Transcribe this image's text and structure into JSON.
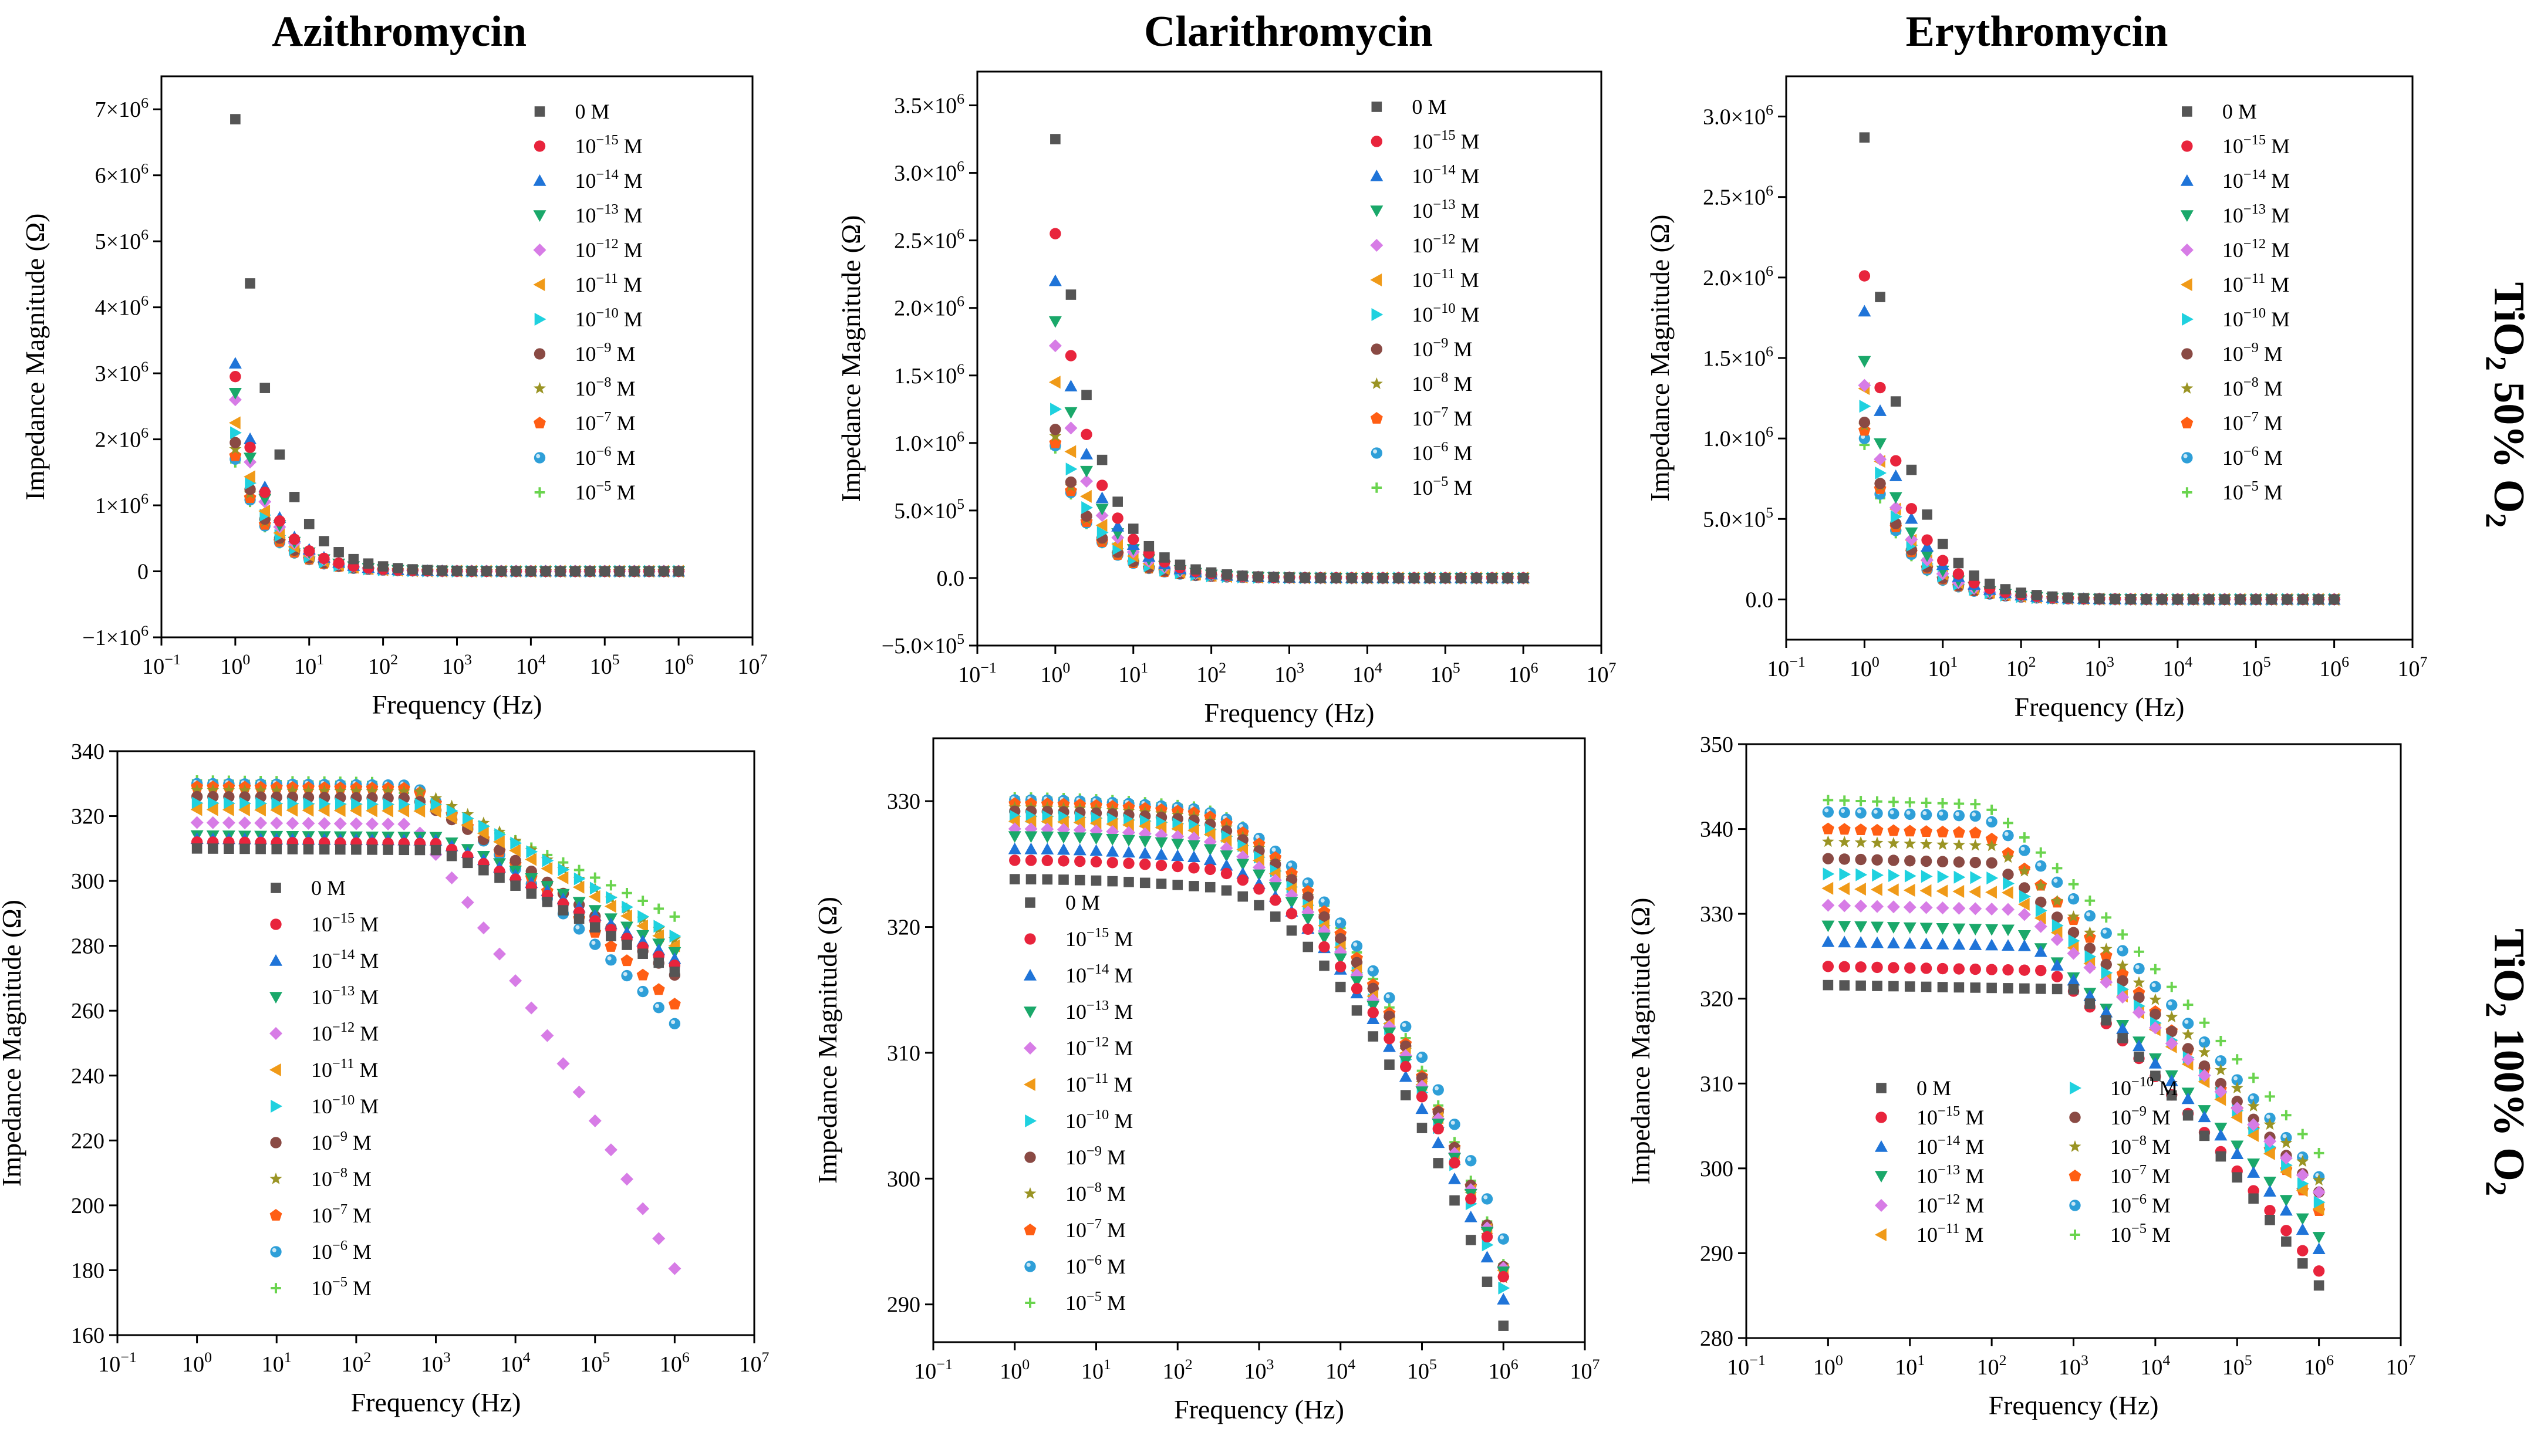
{
  "figure": {
    "column_titles": [
      "Azithromycin",
      "Clarithromycin",
      "Erythromycin"
    ],
    "row_labels": [
      {
        "main": "TiO",
        "sub": "2",
        "mid": " 50% O",
        "sub2": "2"
      },
      {
        "main": "TiO",
        "sub": "2",
        "mid": " 100% O",
        "sub2": "2"
      }
    ],
    "series_labels": [
      "0 M",
      "10^-15 M",
      "10^-14 M",
      "10^-13 M",
      "10^-12 M",
      "10^-11 M",
      "10^-10 M",
      "10^-9 M",
      "10^-8 M",
      "10^-7 M",
      "10^-6 M",
      "10^-5 M"
    ],
    "series_colors": [
      "#555555",
      "#e8243c",
      "#1f74d8",
      "#1aa86a",
      "#d77ce6",
      "#f09a18",
      "#1fd1df",
      "#8a4a44",
      "#9a9424",
      "#ff5e14",
      "#2e9fd8",
      "#6ad44e"
    ],
    "series_markers": [
      "square",
      "circle",
      "triangle-up",
      "triangle-down",
      "diamond",
      "triangle-left",
      "triangle-right",
      "circle",
      "star",
      "pentagon",
      "sphere",
      "plus"
    ],
    "x_tick_labels": [
      "10^-1",
      "10^0",
      "10^1",
      "10^2",
      "10^3",
      "10^4",
      "10^5",
      "10^6",
      "10^7"
    ]
  },
  "chart_data": [
    {
      "id": "azi50",
      "type": "scatter",
      "title": "Azithromycin",
      "xlabel": "Frequency (Hz)",
      "ylabel": "Impedance Magnitude (Ω)",
      "xscale": "log",
      "xlim": [
        0.1,
        10000000
      ],
      "ylim": [
        -1000000,
        7500000
      ],
      "y_ticks": [
        -1000000,
        0,
        1000000,
        2000000,
        3000000,
        4000000,
        5000000,
        6000000,
        7000000
      ],
      "y_tick_labels": [
        "-1×10^6",
        "0",
        "1×10^6",
        "2×10^6",
        "3×10^6",
        "4×10^6",
        "5×10^6",
        "6×10^6",
        "7×10^6"
      ],
      "legend": {
        "position": "top-right",
        "columns": 1
      },
      "model": {
        "kind": "decay",
        "base_y0": [
          6850000,
          2950000,
          3150000,
          2700000,
          2600000,
          2250000,
          2100000,
          1950000,
          1850000,
          1750000,
          1700000,
          1650000
        ],
        "decay_exponent": 0.98
      },
      "frequency_range_hz": [
        1,
        1000000
      ],
      "points_per_series": 31
    },
    {
      "id": "cla50",
      "type": "scatter",
      "title": "Clarithromycin",
      "xlabel": "Frequency (Hz)",
      "ylabel": "Impedance Magnitude (Ω)",
      "xscale": "log",
      "xlim": [
        0.1,
        10000000
      ],
      "ylim": [
        -500000,
        3750000
      ],
      "y_ticks": [
        -500000,
        0,
        500000,
        1000000,
        1500000,
        2000000,
        2500000,
        3000000,
        3500000
      ],
      "y_tick_labels": [
        "-5.0×10^5",
        "0.0",
        "5.0×10^5",
        "1.0×10^6",
        "1.5×10^6",
        "2.0×10^6",
        "2.5×10^6",
        "3.0×10^6",
        "3.5×10^6"
      ],
      "legend": {
        "position": "top-right",
        "columns": 1
      },
      "model": {
        "kind": "decay",
        "base_y0": [
          3250000,
          2550000,
          2200000,
          1900000,
          1720000,
          1450000,
          1250000,
          1100000,
          1050000,
          1000000,
          980000,
          960000
        ],
        "decay_exponent": 0.95
      },
      "frequency_range_hz": [
        1,
        1000000
      ],
      "points_per_series": 31
    },
    {
      "id": "ery50",
      "type": "scatter",
      "title": "Erythromycin",
      "xlabel": "Frequency (Hz)",
      "ylabel": "Impedance Magnitude (Ω)",
      "xscale": "log",
      "xlim": [
        0.1,
        10000000
      ],
      "ylim": [
        -250000,
        3250000
      ],
      "y_ticks": [
        0,
        500000,
        1000000,
        1500000,
        2000000,
        2500000,
        3000000
      ],
      "y_tick_labels": [
        "0.0",
        "5.0×10^5",
        "1.0×10^6",
        "1.5×10^6",
        "2.0×10^6",
        "2.5×10^6",
        "3.0×10^6"
      ],
      "legend": {
        "position": "top-right",
        "columns": 1
      },
      "model": {
        "kind": "decay",
        "base_y0": [
          2870000,
          2010000,
          1790000,
          1480000,
          1330000,
          1310000,
          1200000,
          1100000,
          1080000,
          1050000,
          1000000,
          960000
        ],
        "decay_exponent": 0.92
      },
      "frequency_range_hz": [
        1,
        1000000
      ],
      "points_per_series": 31
    },
    {
      "id": "azi100",
      "type": "scatter",
      "title": "",
      "xlabel": "Frequency (Hz)",
      "ylabel": "Impedance Magnitude (Ω)",
      "xscale": "log",
      "xlim": [
        0.1,
        10000000
      ],
      "ylim": [
        160,
        340
      ],
      "y_ticks": [
        160,
        180,
        200,
        220,
        240,
        260,
        280,
        300,
        320,
        340
      ],
      "y_tick_labels": [
        "160",
        "180",
        "200",
        "220",
        "240",
        "260",
        "280",
        "300",
        "320",
        "340"
      ],
      "legend": {
        "position": "lower-left",
        "columns": 1
      },
      "model": {
        "kind": "rolloff",
        "plateau": [
          310,
          312,
          313,
          314,
          318,
          322,
          324,
          326,
          328,
          329,
          330,
          331
        ],
        "end_1MHz": [
          272,
          274,
          276,
          278,
          180.5,
          280,
          283,
          271,
          282,
          262,
          256,
          289
        ],
        "knee_log": [
          3.0,
          3.0,
          3.0,
          3.0,
          2.7,
          3.0,
          3.0,
          2.7,
          2.8,
          2.7,
          2.7,
          2.2
        ],
        "shape": "linear-after-knee"
      },
      "frequency_range_hz": [
        1,
        1000000
      ],
      "points_per_series": 31
    },
    {
      "id": "cla100",
      "type": "scatter",
      "title": "",
      "xlabel": "Frequency (Hz)",
      "ylabel": "Impedance Magnitude (Ω)",
      "xscale": "log",
      "xlim": [
        0.1,
        10000000
      ],
      "ylim": [
        287,
        335
      ],
      "y_ticks": [
        290,
        300,
        310,
        320,
        330
      ],
      "y_tick_labels": [
        "290",
        "300",
        "310",
        "320",
        "330"
      ],
      "legend": {
        "position": "lower-left",
        "columns": 1
      },
      "model": {
        "kind": "rolloff",
        "plateau": [
          323.8,
          325.3,
          326.2,
          327.2,
          327.8,
          328.4,
          328.8,
          329.2,
          329.5,
          329.8,
          330.1,
          330.3
        ],
        "end_1MHz": [
          288.3,
          292.2,
          290.4,
          292.6,
          292.9,
          292.7,
          291.3,
          293.0,
          292.1,
          292.8,
          295.2,
          293.2
        ],
        "knee_log": [
          2.3,
          2.2,
          2.1,
          2.0,
          2.0,
          2.0,
          2.0,
          2.0,
          2.0,
          2.0,
          2.0,
          2.0
        ],
        "shape": "convex-after-knee"
      },
      "frequency_range_hz": [
        1,
        1000000
      ],
      "points_per_series": 31
    },
    {
      "id": "ery100",
      "type": "scatter",
      "title": "",
      "xlabel": "Frequency (Hz)",
      "ylabel": "Impedance Magnitude (Ω)",
      "xscale": "log",
      "xlim": [
        0.1,
        10000000
      ],
      "ylim": [
        280,
        350
      ],
      "y_ticks": [
        280,
        290,
        300,
        310,
        320,
        330,
        340,
        350
      ],
      "y_tick_labels": [
        "280",
        "290",
        "300",
        "310",
        "320",
        "330",
        "340",
        "350"
      ],
      "legend": {
        "position": "lower-left",
        "columns": 2
      },
      "model": {
        "kind": "rolloff",
        "plateau": [
          321.6,
          323.8,
          326.7,
          328.6,
          331.0,
          333.0,
          334.7,
          336.5,
          338.5,
          340.0,
          342.0,
          343.4
        ],
        "end_1MHz": [
          286.2,
          287.9,
          290.5,
          291.9,
          297.2,
          295.2,
          296.0,
          297.2,
          298.6,
          295.0,
          299.0,
          301.8
        ],
        "knee_log": [
          3.0,
          2.7,
          2.5,
          2.3,
          2.3,
          2.2,
          2.1,
          2.0,
          2.0,
          1.9,
          1.9,
          1.9
        ],
        "shape": "linear-after-knee"
      },
      "frequency_range_hz": [
        1,
        1000000
      ],
      "points_per_series": 31
    }
  ]
}
